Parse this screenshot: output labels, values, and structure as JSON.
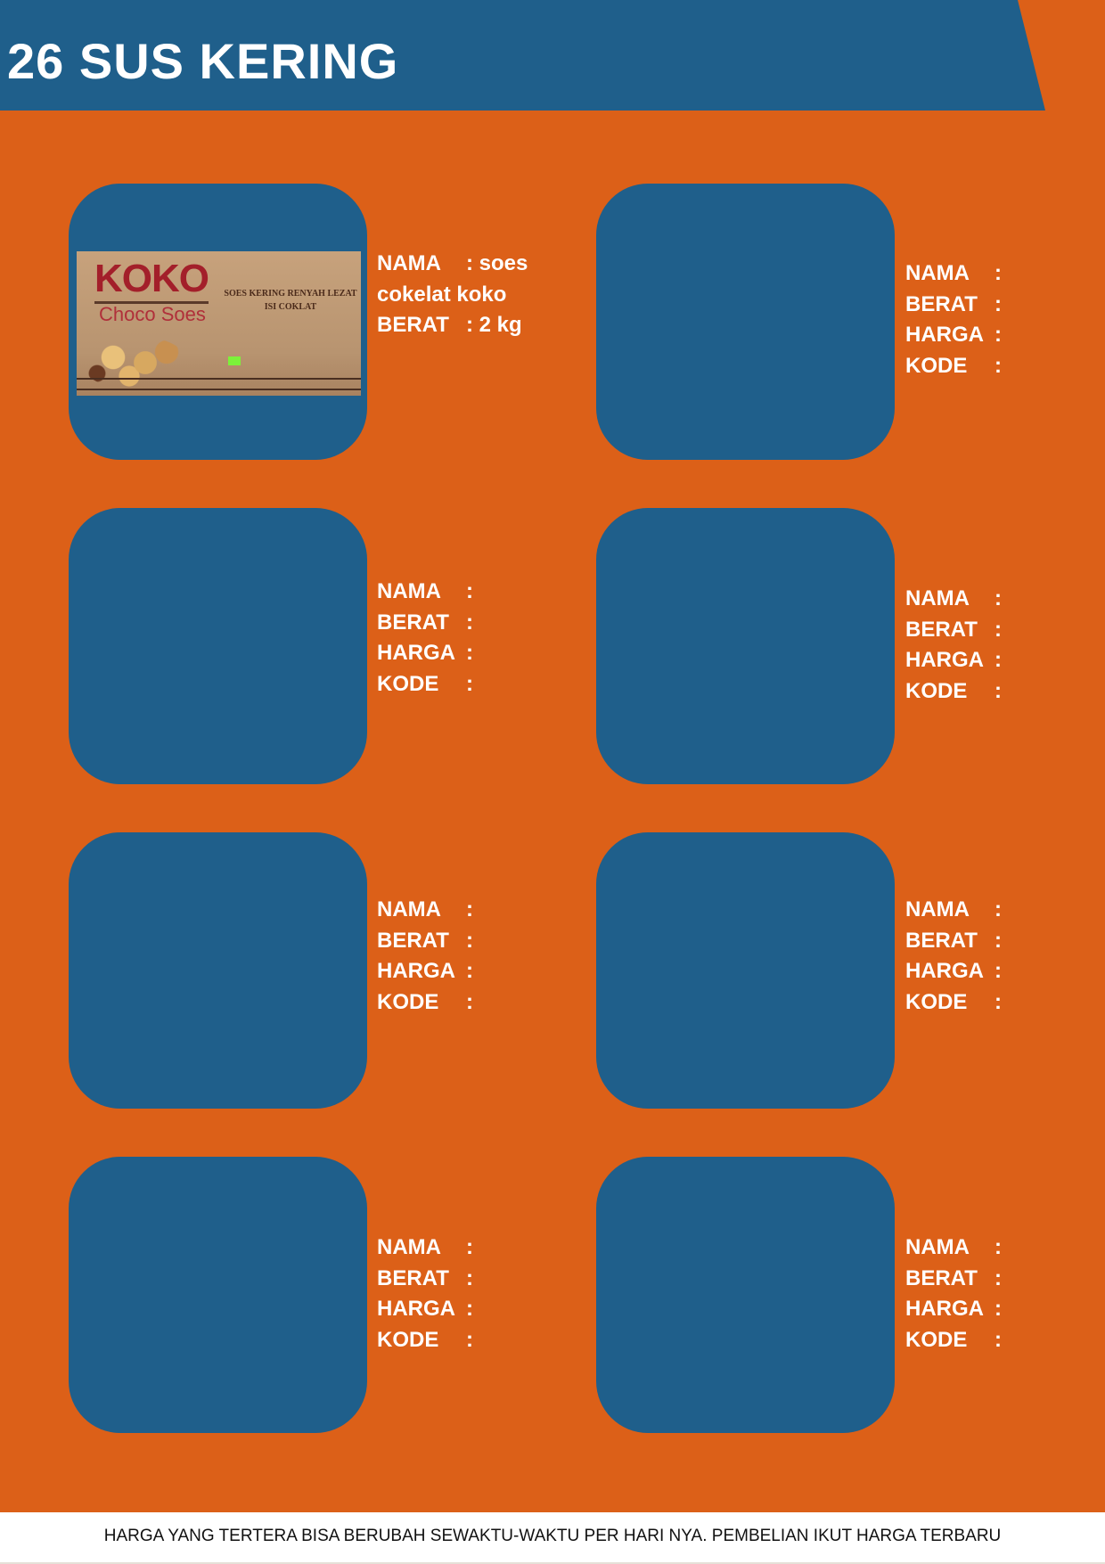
{
  "header": {
    "title": "26 SUS KERING"
  },
  "colors": {
    "background": "#dc6018",
    "card": "#1f5f8b",
    "header": "#1f5f8b",
    "text": "#ffffff"
  },
  "products": [
    {
      "image": {
        "brand": "KOKO",
        "subtitle": "Choco Soes",
        "tagline": "SOES KERING RENYAH LEZAT ISI COKLAT"
      },
      "fields": [
        {
          "label": "NAMA",
          "value": ": soes"
        },
        {
          "label": "cokelat koko",
          "value": ""
        },
        {
          "label": "BERAT",
          "value": ": 2 kg"
        }
      ]
    },
    {
      "fields": [
        {
          "label": "NAMA",
          "value": ":"
        },
        {
          "label": "BERAT",
          "value": ":"
        },
        {
          "label": "HARGA",
          "value": ":"
        },
        {
          "label": "KODE",
          "value": ":"
        }
      ]
    },
    {
      "fields": [
        {
          "label": "NAMA",
          "value": ":"
        },
        {
          "label": "BERAT",
          "value": ":"
        },
        {
          "label": "HARGA",
          "value": ":"
        },
        {
          "label": "KODE",
          "value": ":"
        }
      ]
    },
    {
      "fields": [
        {
          "label": "NAMA",
          "value": ":"
        },
        {
          "label": "BERAT",
          "value": ":"
        },
        {
          "label": "HARGA",
          "value": ":"
        },
        {
          "label": "KODE",
          "value": ":"
        }
      ]
    },
    {
      "fields": [
        {
          "label": "NAMA",
          "value": ":"
        },
        {
          "label": "BERAT",
          "value": ":"
        },
        {
          "label": "HARGA",
          "value": ":"
        },
        {
          "label": "KODE",
          "value": ":"
        }
      ]
    },
    {
      "fields": [
        {
          "label": "NAMA",
          "value": ":"
        },
        {
          "label": "BERAT",
          "value": ":"
        },
        {
          "label": "HARGA",
          "value": ":"
        },
        {
          "label": "KODE",
          "value": ":"
        }
      ]
    },
    {
      "fields": [
        {
          "label": "NAMA",
          "value": ":"
        },
        {
          "label": "BERAT",
          "value": ":"
        },
        {
          "label": "HARGA",
          "value": ":"
        },
        {
          "label": "KODE",
          "value": ":"
        }
      ]
    },
    {
      "fields": [
        {
          "label": "NAMA",
          "value": ":"
        },
        {
          "label": "BERAT",
          "value": ":"
        },
        {
          "label": "HARGA",
          "value": ":"
        },
        {
          "label": "KODE",
          "value": ":"
        }
      ]
    }
  ],
  "footer": {
    "note": "HARGA YANG TERTERA BISA BERUBAH SEWAKTU-WAKTU PER HARI NYA. PEMBELIAN IKUT HARGA TERBARU"
  }
}
